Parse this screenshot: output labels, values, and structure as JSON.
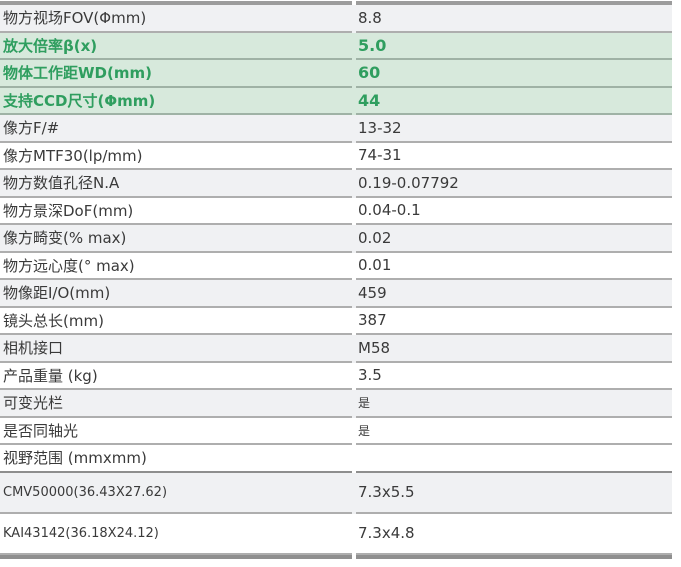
{
  "page": {
    "background": "#ffffff"
  },
  "table": {
    "colors": {
      "green_text": "#2f9e5f",
      "green_row_bg": "#d7e9dc",
      "zebra_row_bg": "#f0f1f3",
      "row_border": "#aeaeae",
      "top_bar": "#9c9c9c",
      "bottom_bar": "#8f8f8f",
      "text": "#3a3a3a"
    },
    "rows": [
      {
        "label": "物方视场FOV(Φmm)",
        "value": "8.8",
        "style": "gray"
      },
      {
        "label": "放大倍率β(x)",
        "value": "5.0",
        "style": "green"
      },
      {
        "label": "物体工作距WD(mm)",
        "value": "60",
        "style": "green"
      },
      {
        "label": "支持CCD尺寸(Φmm)",
        "value": "44",
        "style": "green"
      },
      {
        "label": "像方F/#",
        "value": "13-32",
        "style": "gray"
      },
      {
        "label": "像方MTF30(lp/mm)",
        "value": "74-31",
        "style": "white"
      },
      {
        "label": "物方数值孔径N.A",
        "value": "0.19-0.07792",
        "style": "gray"
      },
      {
        "label": "物方景深DoF(mm)",
        "value": "0.04-0.1",
        "style": "white"
      },
      {
        "label": "像方畸变(% max)",
        "value": "0.02",
        "style": "gray"
      },
      {
        "label": "物方远心度(° max)",
        "value": "0.01",
        "style": "white"
      },
      {
        "label": "物像距I/O(mm)",
        "value": "459",
        "style": "gray"
      },
      {
        "label": "镜头总长(mm)",
        "value": "387",
        "style": "white"
      },
      {
        "label": "相机接口",
        "value": "M58",
        "style": "gray"
      },
      {
        "label": "产品重量 (kg)",
        "value": "3.5",
        "style": "white"
      },
      {
        "label": "可变光栏",
        "value": "是",
        "style": "gray",
        "small_value": true
      },
      {
        "label": "是否同轴光",
        "value": "是",
        "style": "white",
        "small_value": true
      },
      {
        "label": "视野范围 (mmxmm)",
        "value": "",
        "style": "white",
        "section": true
      },
      {
        "label": "CMV50000(36.43X27.62)",
        "value": "7.3x5.5",
        "style": "gray",
        "tall": true,
        "small_label": true
      },
      {
        "label": "KAI43142(36.18X24.12)",
        "value": "7.3x4.8",
        "style": "white",
        "tall": true,
        "small_label": true
      }
    ]
  }
}
